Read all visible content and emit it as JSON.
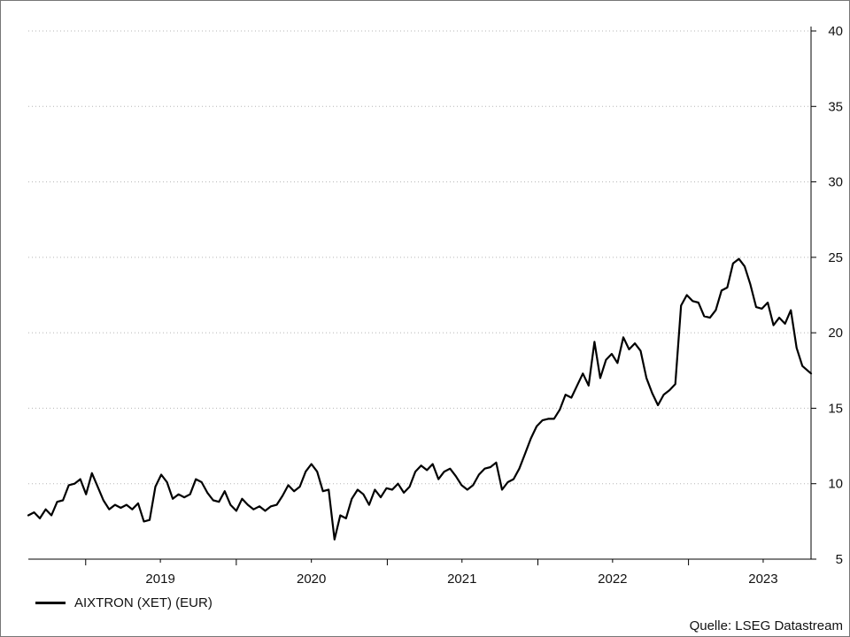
{
  "chart_data": {
    "type": "line",
    "title": "",
    "xlabel": "",
    "ylabel": "",
    "ylim": [
      5,
      40
    ],
    "y_ticks": [
      5,
      10,
      15,
      20,
      25,
      30,
      35,
      40
    ],
    "y_axis_side": "right",
    "x_range": [
      "2018-08-15",
      "2023-10-25"
    ],
    "x_tick_labels": [
      "2019",
      "2020",
      "2021",
      "2022",
      "2023"
    ],
    "grid": "horizontal dotted",
    "legend_position": "bottom-left",
    "series": [
      {
        "name": "AIXTRON (XET) (EUR)",
        "color": "#000000",
        "points": [
          [
            "2018-08-15",
            7.9
          ],
          [
            "2018-08-29",
            8.1
          ],
          [
            "2018-09-12",
            7.7
          ],
          [
            "2018-09-26",
            8.3
          ],
          [
            "2018-10-10",
            7.9
          ],
          [
            "2018-10-24",
            8.8
          ],
          [
            "2018-11-07",
            8.9
          ],
          [
            "2018-11-21",
            9.9
          ],
          [
            "2018-12-05",
            10.0
          ],
          [
            "2018-12-19",
            10.3
          ],
          [
            "2019-01-02",
            9.3
          ],
          [
            "2019-01-16",
            10.7
          ],
          [
            "2019-01-30",
            9.8
          ],
          [
            "2019-02-13",
            8.9
          ],
          [
            "2019-02-27",
            8.3
          ],
          [
            "2019-03-13",
            8.6
          ],
          [
            "2019-03-27",
            8.4
          ],
          [
            "2019-04-10",
            8.6
          ],
          [
            "2019-04-24",
            8.3
          ],
          [
            "2019-05-08",
            8.7
          ],
          [
            "2019-05-22",
            7.5
          ],
          [
            "2019-06-05",
            7.6
          ],
          [
            "2019-06-19",
            9.8
          ],
          [
            "2019-07-03",
            10.6
          ],
          [
            "2019-07-17",
            10.1
          ],
          [
            "2019-07-31",
            9.0
          ],
          [
            "2019-08-14",
            9.3
          ],
          [
            "2019-08-28",
            9.1
          ],
          [
            "2019-09-11",
            9.3
          ],
          [
            "2019-09-25",
            10.3
          ],
          [
            "2019-10-09",
            10.1
          ],
          [
            "2019-10-23",
            9.4
          ],
          [
            "2019-11-06",
            8.9
          ],
          [
            "2019-11-20",
            8.8
          ],
          [
            "2019-12-04",
            9.5
          ],
          [
            "2019-12-18",
            8.6
          ],
          [
            "2020-01-01",
            8.2
          ],
          [
            "2020-01-15",
            9.0
          ],
          [
            "2020-01-29",
            8.6
          ],
          [
            "2020-02-12",
            8.3
          ],
          [
            "2020-02-26",
            8.5
          ],
          [
            "2020-03-11",
            8.2
          ],
          [
            "2020-03-25",
            8.5
          ],
          [
            "2020-04-08",
            8.6
          ],
          [
            "2020-04-22",
            9.2
          ],
          [
            "2020-05-06",
            9.9
          ],
          [
            "2020-05-20",
            9.5
          ],
          [
            "2020-06-03",
            9.8
          ],
          [
            "2020-06-17",
            10.8
          ],
          [
            "2020-07-01",
            11.3
          ],
          [
            "2020-07-15",
            10.8
          ],
          [
            "2020-07-29",
            9.5
          ],
          [
            "2020-08-12",
            9.6
          ],
          [
            "2020-08-26",
            6.3
          ],
          [
            "2020-09-09",
            7.9
          ],
          [
            "2020-09-23",
            7.7
          ],
          [
            "2020-10-07",
            9.0
          ],
          [
            "2020-10-21",
            9.6
          ],
          [
            "2020-11-04",
            9.3
          ],
          [
            "2020-11-18",
            8.6
          ],
          [
            "2020-12-02",
            9.6
          ],
          [
            "2020-12-16",
            9.1
          ],
          [
            "2020-12-30",
            9.7
          ],
          [
            "2021-01-13",
            9.6
          ],
          [
            "2021-01-27",
            10.0
          ],
          [
            "2021-02-10",
            9.4
          ],
          [
            "2021-02-24",
            9.8
          ],
          [
            "2021-03-10",
            10.8
          ],
          [
            "2021-03-24",
            11.2
          ],
          [
            "2021-04-07",
            10.9
          ],
          [
            "2021-04-21",
            11.3
          ],
          [
            "2021-05-05",
            10.3
          ],
          [
            "2021-05-19",
            10.8
          ],
          [
            "2021-06-02",
            11.0
          ],
          [
            "2021-06-16",
            10.5
          ],
          [
            "2021-06-30",
            9.9
          ],
          [
            "2021-07-14",
            9.6
          ],
          [
            "2021-07-28",
            9.9
          ],
          [
            "2021-08-11",
            10.6
          ],
          [
            "2021-08-25",
            11.0
          ],
          [
            "2021-09-08",
            11.1
          ],
          [
            "2021-09-22",
            11.4
          ],
          [
            "2021-10-06",
            9.6
          ],
          [
            "2021-10-20",
            10.1
          ],
          [
            "2021-11-03",
            10.3
          ],
          [
            "2021-11-17",
            11.0
          ],
          [
            "2021-12-01",
            12.0
          ],
          [
            "2021-12-15",
            13.0
          ],
          [
            "2021-12-29",
            13.8
          ],
          [
            "2022-01-12",
            14.2
          ],
          [
            "2022-01-26",
            14.3
          ],
          [
            "2022-02-09",
            14.3
          ],
          [
            "2022-02-23",
            14.9
          ],
          [
            "2022-03-09",
            15.9
          ],
          [
            "2022-03-23",
            15.7
          ],
          [
            "2022-04-06",
            16.5
          ],
          [
            "2022-04-20",
            17.3
          ],
          [
            "2022-05-04",
            16.5
          ],
          [
            "2022-05-18",
            19.4
          ],
          [
            "2022-06-01",
            17.0
          ],
          [
            "2022-06-15",
            18.2
          ],
          [
            "2022-06-29",
            18.6
          ],
          [
            "2022-07-13",
            18.0
          ],
          [
            "2022-07-27",
            19.7
          ],
          [
            "2022-08-10",
            18.9
          ],
          [
            "2022-08-24",
            19.3
          ],
          [
            "2022-09-07",
            18.8
          ],
          [
            "2022-09-21",
            17.0
          ],
          [
            "2022-10-05",
            16.0
          ],
          [
            "2022-10-19",
            15.2
          ],
          [
            "2022-11-02",
            15.9
          ],
          [
            "2022-11-16",
            16.2
          ],
          [
            "2022-11-30",
            16.6
          ],
          [
            "2022-12-14",
            21.8
          ],
          [
            "2022-12-28",
            22.5
          ],
          [
            "2023-01-11",
            22.1
          ],
          [
            "2023-01-25",
            22.0
          ],
          [
            "2023-02-08",
            21.1
          ],
          [
            "2023-02-22",
            21.0
          ],
          [
            "2023-03-08",
            21.5
          ],
          [
            "2023-03-22",
            22.8
          ],
          [
            "2023-04-05",
            23.0
          ],
          [
            "2023-04-19",
            24.6
          ],
          [
            "2023-05-03",
            24.9
          ],
          [
            "2023-05-17",
            24.4
          ],
          [
            "2023-05-31",
            23.2
          ],
          [
            "2023-06-14",
            21.7
          ],
          [
            "2023-06-28",
            21.6
          ],
          [
            "2023-07-12",
            22.0
          ],
          [
            "2023-07-26",
            20.5
          ],
          [
            "2023-08-09",
            21.0
          ],
          [
            "2023-08-23",
            20.6
          ],
          [
            "2023-09-06",
            21.5
          ],
          [
            "2023-09-20",
            19.0
          ],
          [
            "2023-10-04",
            17.8
          ],
          [
            "2023-10-25",
            17.3
          ]
        ]
      }
    ]
  },
  "legend": {
    "label": "AIXTRON (XET) (EUR)"
  },
  "source_note": "Quelle: LSEG Datastream"
}
